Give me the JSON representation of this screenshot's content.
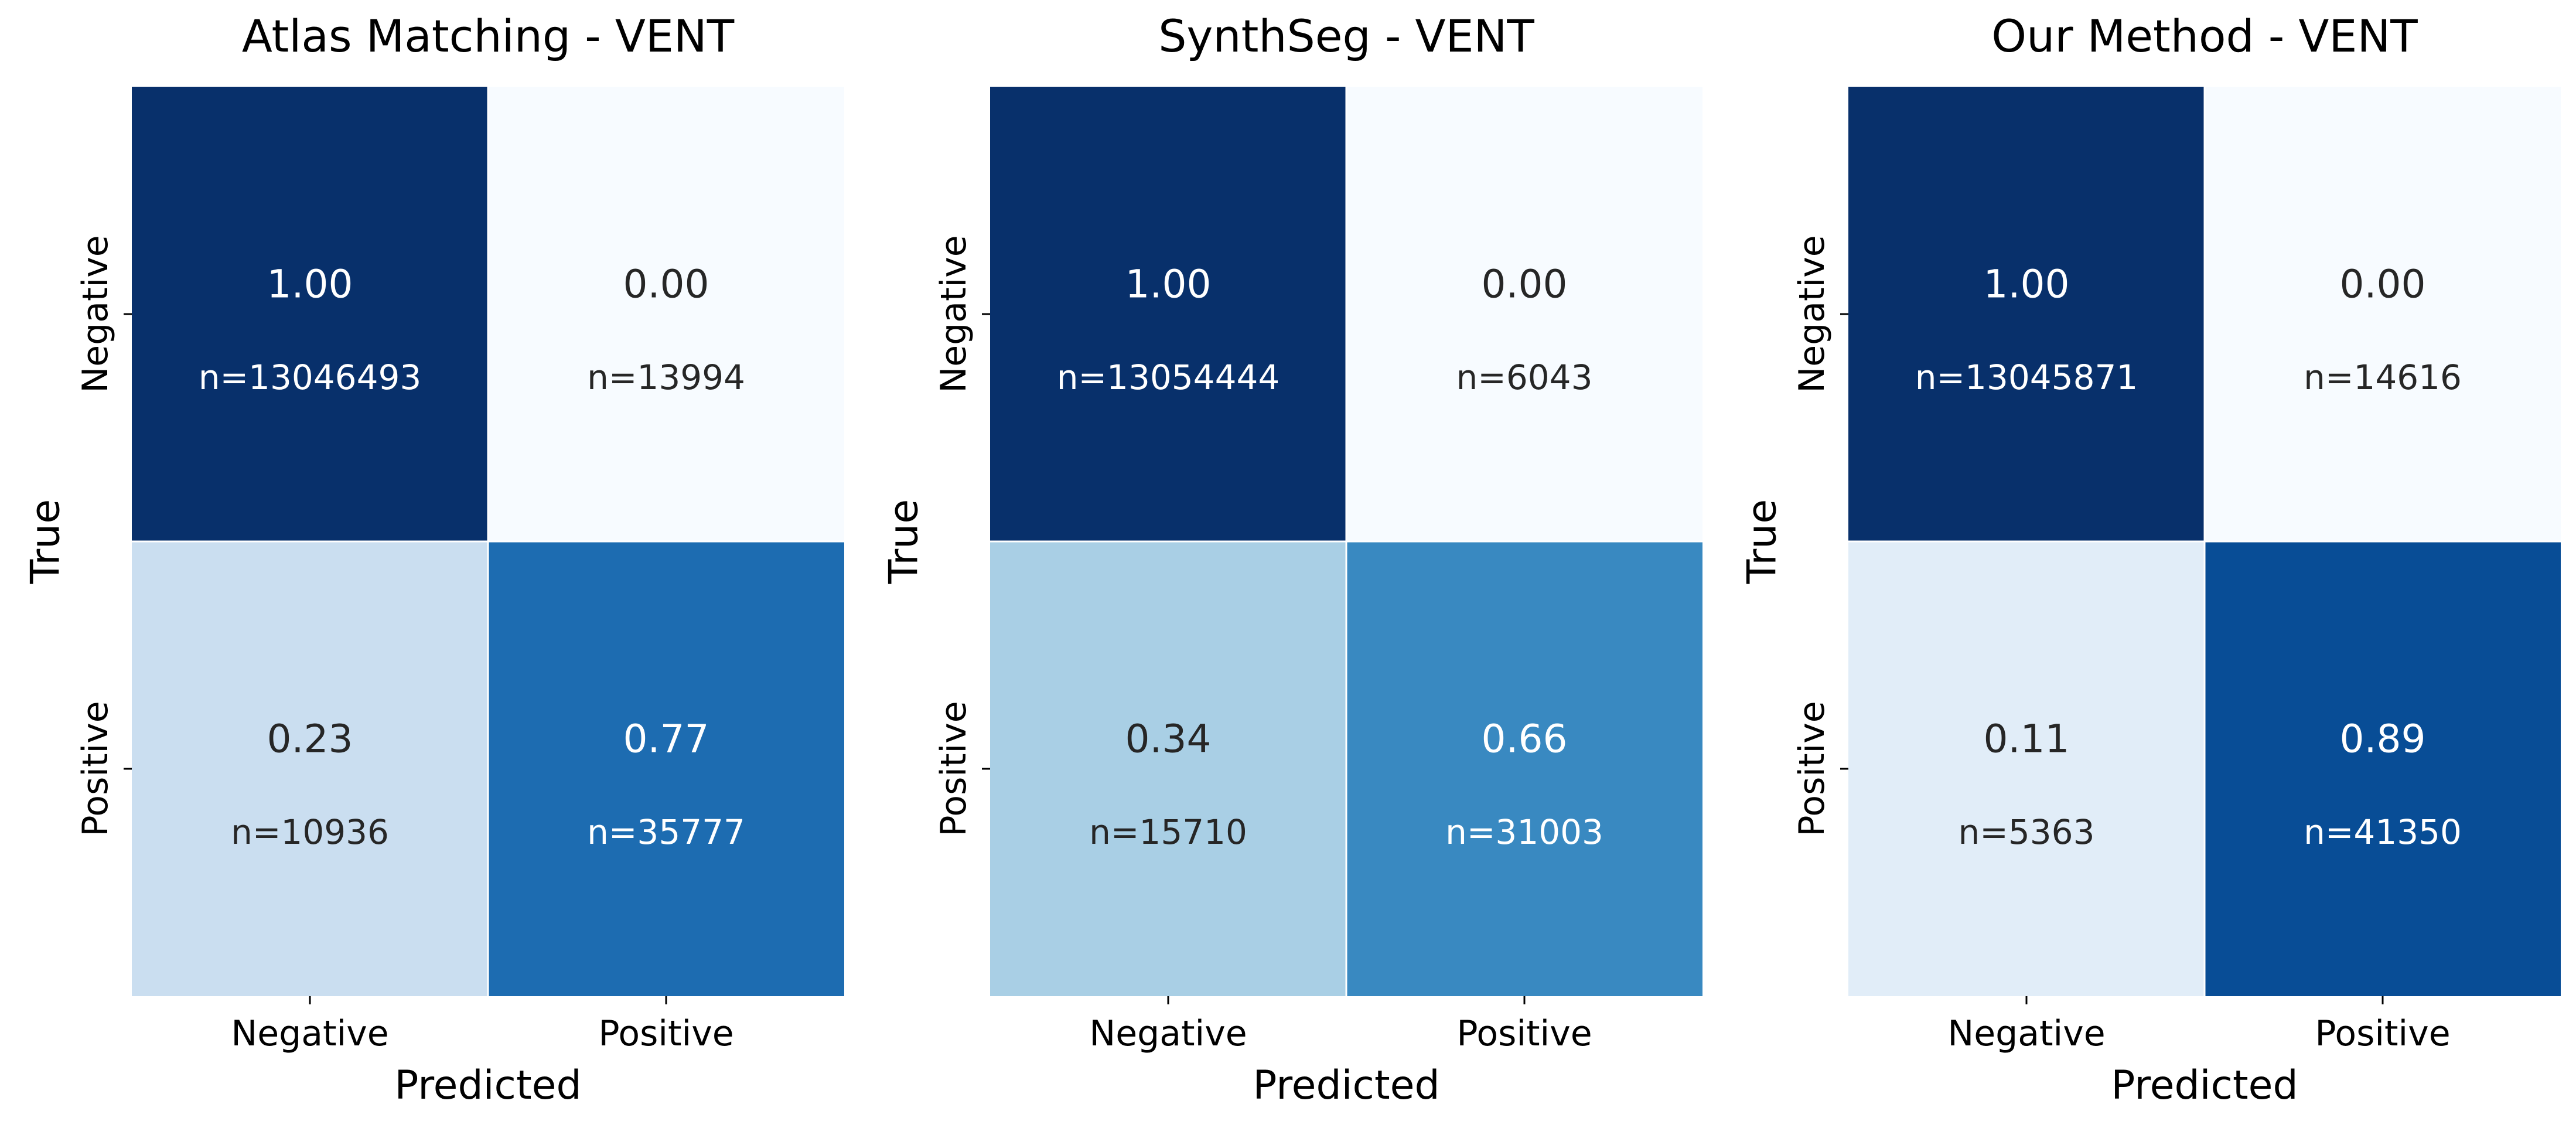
{
  "chart_data": [
    {
      "type": "heatmap",
      "title": "Atlas Matching - VENT",
      "xlabel": "Predicted",
      "ylabel": "True",
      "x_categories": [
        "Negative",
        "Positive"
      ],
      "y_categories": [
        "Negative",
        "Positive"
      ],
      "values": [
        [
          1.0,
          0.0
        ],
        [
          0.23,
          0.77
        ]
      ],
      "value_labels": [
        [
          "1.00",
          "0.00"
        ],
        [
          "0.23",
          "0.77"
        ]
      ],
      "count_labels": [
        [
          "n=13046493",
          "n=13994"
        ],
        [
          "n=10936",
          "n=35777"
        ]
      ],
      "colormap": "Blues",
      "colorbar": false
    },
    {
      "type": "heatmap",
      "title": "SynthSeg - VENT",
      "xlabel": "Predicted",
      "ylabel": "True",
      "x_categories": [
        "Negative",
        "Positive"
      ],
      "y_categories": [
        "Negative",
        "Positive"
      ],
      "values": [
        [
          1.0,
          0.0
        ],
        [
          0.34,
          0.66
        ]
      ],
      "value_labels": [
        [
          "1.00",
          "0.00"
        ],
        [
          "0.34",
          "0.66"
        ]
      ],
      "count_labels": [
        [
          "n=13054444",
          "n=6043"
        ],
        [
          "n=15710",
          "n=31003"
        ]
      ],
      "colormap": "Blues",
      "colorbar": false
    },
    {
      "type": "heatmap",
      "title": "Our Method   - VENT",
      "xlabel": "Predicted",
      "ylabel": "True",
      "x_categories": [
        "Negative",
        "Positive"
      ],
      "y_categories": [
        "Negative",
        "Positive"
      ],
      "values": [
        [
          1.0,
          0.0
        ],
        [
          0.11,
          0.89
        ]
      ],
      "value_labels": [
        [
          "1.00",
          "0.00"
        ],
        [
          "0.11",
          "0.89"
        ]
      ],
      "count_labels": [
        [
          "n=13045871",
          "n=14616"
        ],
        [
          "n=5363",
          "n=41350"
        ]
      ],
      "colormap": "Blues",
      "colorbar": false
    }
  ]
}
